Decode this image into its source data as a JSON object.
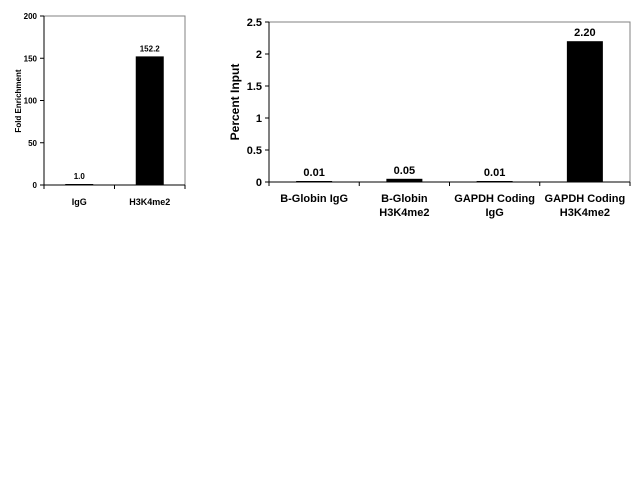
{
  "chart_data": [
    {
      "type": "bar",
      "title": "",
      "xlabel": "",
      "ylabel": "Fold Enrichment",
      "categories": [
        "IgG",
        "H3K4me2"
      ],
      "values": [
        1.0,
        152.2
      ],
      "value_labels": [
        "1.0",
        "152.2"
      ],
      "ylim": [
        0,
        200
      ],
      "yticks": [
        0,
        50,
        100,
        150,
        200
      ],
      "ytick_labels": [
        "0",
        "50",
        "100",
        "150",
        "200"
      ],
      "grid": false,
      "legend": "none",
      "bar_color": "#000000"
    },
    {
      "type": "bar",
      "title": "",
      "xlabel": "",
      "ylabel": "Percent Input",
      "categories": [
        [
          "B-Globin IgG"
        ],
        [
          "B-Globin",
          "H3K4me2"
        ],
        [
          "GAPDH Coding",
          "IgG"
        ],
        [
          "GAPDH Coding",
          "H3K4me2"
        ]
      ],
      "values": [
        0.01,
        0.05,
        0.01,
        2.2
      ],
      "value_labels": [
        "0.01",
        "0.05",
        "0.01",
        "2.20"
      ],
      "ylim": [
        0,
        2.5
      ],
      "yticks": [
        0,
        0.5,
        1,
        1.5,
        2,
        2.5
      ],
      "ytick_labels": [
        "0",
        "0.5",
        "1",
        "1.5",
        "2",
        "2.5"
      ],
      "grid": false,
      "legend": "none",
      "bar_color": "#000000"
    }
  ]
}
